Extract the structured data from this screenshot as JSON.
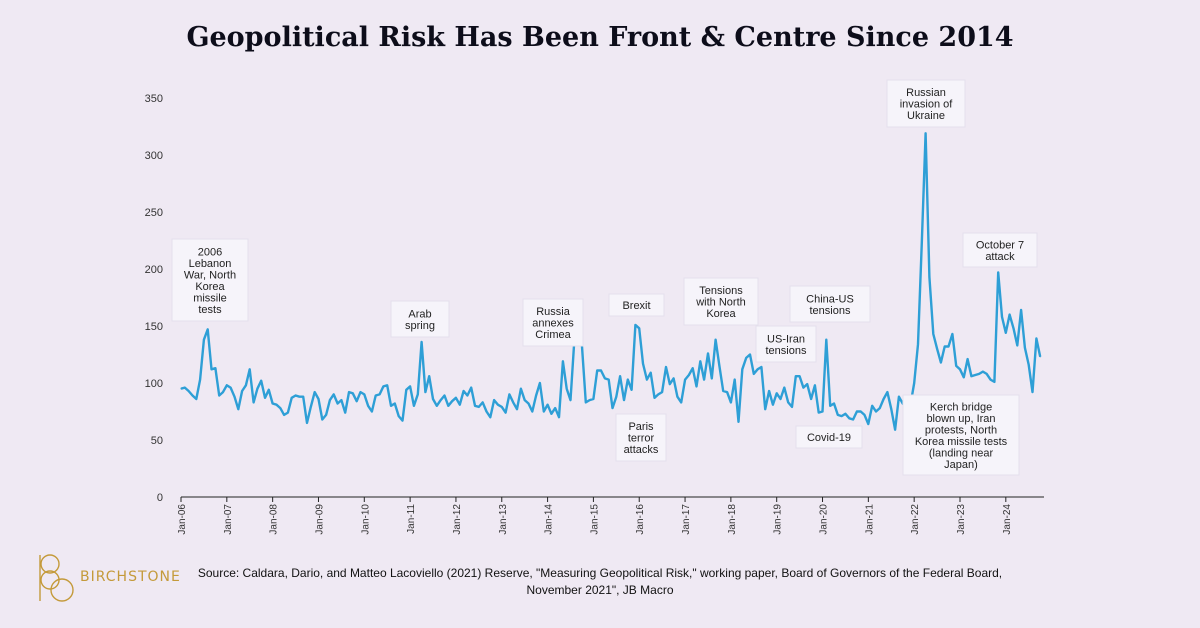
{
  "title": "Geopolitical Risk Has Been Front & Centre Since 2014",
  "source": "Source: Caldara, Dario, and Matteo Lacoviello (2021) Reserve, \"Measuring Geopolitical Risk,\" working paper, Board of Governors of the Federal Board, November 2021\", JB Macro",
  "brand": "BIRCHSTONE",
  "colors": {
    "line": "#2e9fd6",
    "background": "#efe9f3",
    "brand": "#c49a3a"
  },
  "chart_data": {
    "type": "line",
    "title": "Geopolitical Risk Has Been Front & Centre Since 2014",
    "xlabel": "",
    "ylabel": "",
    "ylim": [
      0,
      350
    ],
    "yticks": [
      0,
      50,
      100,
      150,
      200,
      250,
      300,
      350
    ],
    "grid": false,
    "x_ticks": [
      {
        "label": "Jan-06",
        "t": 0
      },
      {
        "label": "Jan-07",
        "t": 12
      },
      {
        "label": "Jan-08",
        "t": 24
      },
      {
        "label": "Jan-09",
        "t": 36
      },
      {
        "label": "Jan-10",
        "t": 48
      },
      {
        "label": "Jan-11",
        "t": 60
      },
      {
        "label": "Jan-12",
        "t": 72
      },
      {
        "label": "Jan-13",
        "t": 84
      },
      {
        "label": "Jan-14",
        "t": 96
      },
      {
        "label": "Jan-15",
        "t": 108
      },
      {
        "label": "Jan-16",
        "t": 120
      },
      {
        "label": "Jan-17",
        "t": 132
      },
      {
        "label": "Jan-18",
        "t": 144
      },
      {
        "label": "Jan-19",
        "t": 156
      },
      {
        "label": "Jan-20",
        "t": 168
      },
      {
        "label": "Jan-21",
        "t": 180
      },
      {
        "label": "Jan-22",
        "t": 192
      },
      {
        "label": "Jan-23",
        "t": 204
      },
      {
        "label": "Jan-24",
        "t": 216
      }
    ],
    "x_start": "Jan-06",
    "x_end_index": 226,
    "series": [
      {
        "values": [
          95,
          96,
          93,
          89,
          86,
          103,
          138,
          147,
          112,
          113,
          89,
          92,
          98,
          96,
          88,
          77,
          93,
          98,
          112,
          83,
          95,
          102,
          87,
          94,
          82,
          81,
          78,
          72,
          74,
          87,
          89,
          88,
          88,
          65,
          79,
          92,
          86,
          68,
          72,
          85,
          90,
          82,
          85,
          74,
          92,
          91,
          84,
          92,
          90,
          80,
          75,
          89,
          90,
          97,
          98,
          80,
          82,
          71,
          67,
          94,
          97,
          80,
          90,
          136,
          92,
          106,
          86,
          80,
          85,
          89,
          80,
          84,
          87,
          81,
          93,
          89,
          96,
          80,
          79,
          83,
          75,
          70,
          85,
          81,
          79,
          74,
          90,
          83,
          77,
          95,
          85,
          82,
          75,
          89,
          100,
          75,
          81,
          73,
          78,
          70,
          119,
          95,
          85,
          137,
          140,
          132,
          83,
          85,
          86,
          111,
          111,
          104,
          103,
          78,
          88,
          106,
          85,
          103,
          94,
          151,
          148,
          117,
          103,
          109,
          87,
          90,
          92,
          114,
          99,
          104,
          88,
          83,
          103,
          107,
          113,
          97,
          119,
          103,
          126,
          104,
          138,
          115,
          93,
          92,
          83,
          103,
          66,
          112,
          122,
          125,
          108,
          112,
          114,
          77,
          93,
          81,
          91,
          86,
          96,
          83,
          79,
          106,
          106,
          96,
          99,
          86,
          98,
          74,
          75,
          138,
          80,
          82,
          72,
          71,
          73,
          69,
          68,
          75,
          75,
          72,
          64,
          80,
          75,
          78,
          86,
          92,
          77,
          59,
          88,
          82,
          78,
          80,
          100,
          134,
          223,
          319,
          193,
          143,
          130,
          118,
          132,
          132,
          143,
          115,
          112,
          105,
          121,
          106,
          107,
          108,
          110,
          108,
          103,
          101,
          197,
          158,
          144,
          160,
          148,
          133,
          164,
          131,
          116,
          92,
          139,
          123
        ]
      }
    ],
    "annotations": [
      {
        "lines": [
          "2006",
          "Lebanon",
          "War, North",
          "Korea",
          "missile",
          "tests"
        ],
        "t": 7
      },
      {
        "lines": [
          "Arab",
          "spring"
        ],
        "t": 63
      },
      {
        "lines": [
          "Russia",
          "annexes",
          "Crimea"
        ],
        "t": 98
      },
      {
        "lines": [
          "Brexit"
        ],
        "t": 119
      },
      {
        "lines": [
          "Paris",
          "terror",
          "attacks"
        ],
        "t": 122
      },
      {
        "lines": [
          "Tensions",
          "with North",
          "Korea"
        ],
        "t": 140
      },
      {
        "lines": [
          "US-Iran",
          "tensions"
        ],
        "t": 157
      },
      {
        "lines": [
          "China-US",
          "tensions"
        ],
        "t": 168
      },
      {
        "lines": [
          "Covid-19"
        ],
        "t": 166
      },
      {
        "lines": [
          "Russian",
          "invasion of",
          "Ukraine"
        ],
        "t": 195
      },
      {
        "lines": [
          "Kerch bridge",
          "blown up, Iran",
          "protests, North",
          "Korea missile tests",
          "(landing near",
          "Japan)"
        ],
        "t": 200
      },
      {
        "lines": [
          "October 7",
          "attack"
        ],
        "t": 213
      }
    ]
  }
}
